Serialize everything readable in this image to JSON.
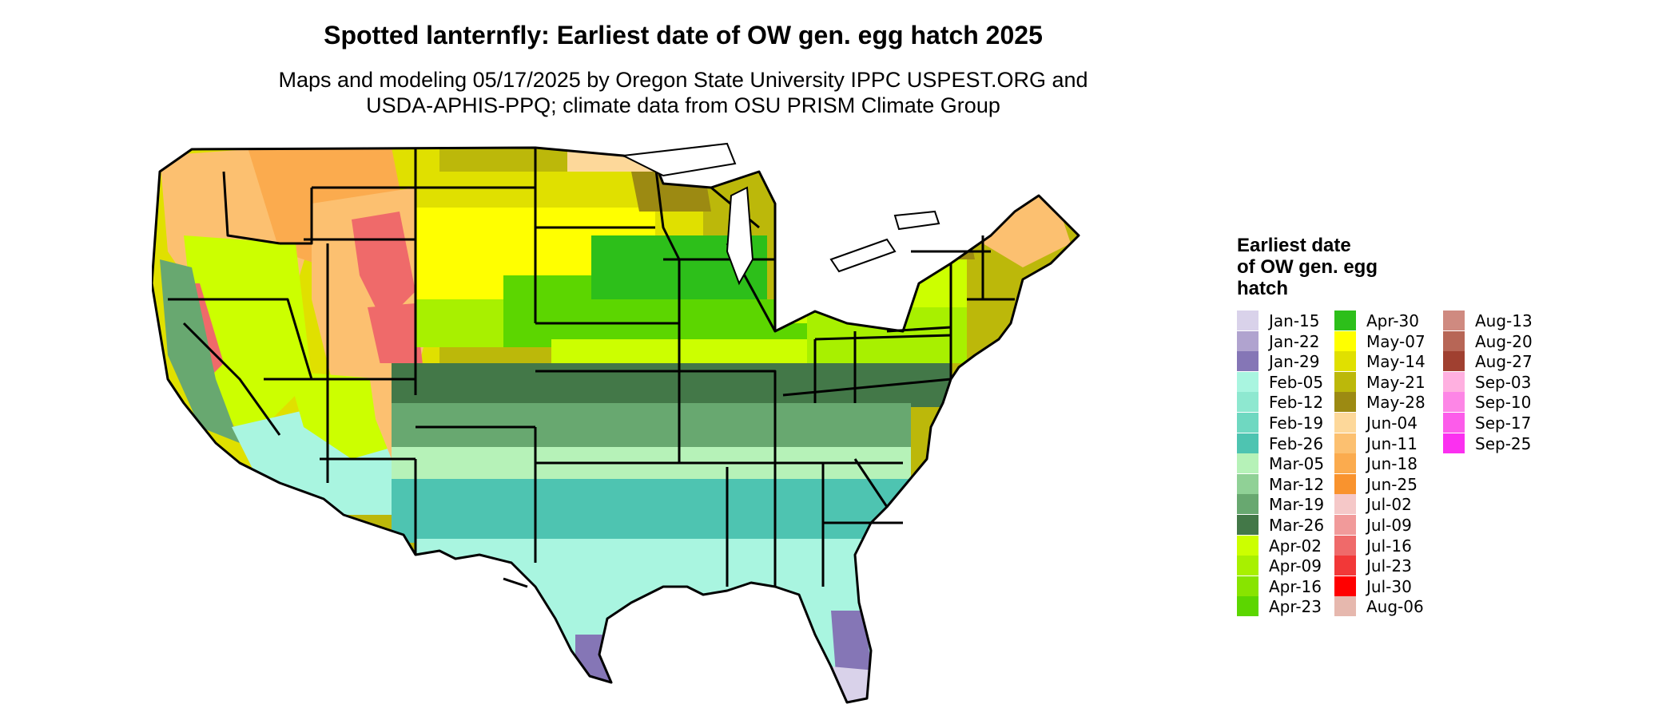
{
  "title": "Spotted lanternfly: Earliest date of OW gen. egg hatch 2025",
  "subtitle_lines": [
    "Maps and modeling 05/17/2025 by Oregon State University IPPC USPEST.ORG and",
    "USDA-APHIS-PPQ; climate data from OSU PRISM Climate Group"
  ],
  "legend": {
    "title_lines": [
      "Earliest date",
      "of OW gen. egg",
      "hatch"
    ],
    "columns": [
      [
        {
          "label": "Jan-15",
          "color": "#d9d2ea"
        },
        {
          "label": "Jan-22",
          "color": "#b0a3cf"
        },
        {
          "label": "Jan-29",
          "color": "#8576b6"
        },
        {
          "label": "Feb-05",
          "color": "#a9f5e0"
        },
        {
          "label": "Feb-12",
          "color": "#8ee8d0"
        },
        {
          "label": "Feb-19",
          "color": "#6fd8c1"
        },
        {
          "label": "Feb-26",
          "color": "#4ec4b1"
        },
        {
          "label": "Mar-05",
          "color": "#b6f2b8"
        },
        {
          "label": "Mar-12",
          "color": "#90d196"
        },
        {
          "label": "Mar-19",
          "color": "#68a870"
        },
        {
          "label": "Mar-26",
          "color": "#437848"
        },
        {
          "label": "Apr-02",
          "color": "#ccff00"
        },
        {
          "label": "Apr-09",
          "color": "#a8f000"
        },
        {
          "label": "Apr-16",
          "color": "#88e400"
        },
        {
          "label": "Apr-23",
          "color": "#5cd600"
        }
      ],
      [
        {
          "label": "Apr-30",
          "color": "#2dbf1a"
        },
        {
          "label": "May-07",
          "color": "#ffff00"
        },
        {
          "label": "May-14",
          "color": "#e0e000"
        },
        {
          "label": "May-21",
          "color": "#bcb80a"
        },
        {
          "label": "May-28",
          "color": "#9c8a12"
        },
        {
          "label": "Jun-04",
          "color": "#fdd89a"
        },
        {
          "label": "Jun-11",
          "color": "#fcc070"
        },
        {
          "label": "Jun-18",
          "color": "#fbab4e"
        },
        {
          "label": "Jun-25",
          "color": "#f9932e"
        },
        {
          "label": "Jul-02",
          "color": "#f5c8c8"
        },
        {
          "label": "Jul-09",
          "color": "#f19a9a"
        },
        {
          "label": "Jul-16",
          "color": "#ef6a6a"
        },
        {
          "label": "Jul-23",
          "color": "#f23838"
        },
        {
          "label": "Jul-30",
          "color": "#ff0000"
        },
        {
          "label": "Aug-06",
          "color": "#e6b8ae"
        }
      ],
      [
        {
          "label": "Aug-13",
          "color": "#cf8a80"
        },
        {
          "label": "Aug-20",
          "color": "#b76656"
        },
        {
          "label": "Aug-27",
          "color": "#a04030"
        },
        {
          "label": "Sep-03",
          "color": "#ffb0e0"
        },
        {
          "label": "Sep-10",
          "color": "#fd86e6"
        },
        {
          "label": "Sep-17",
          "color": "#fc5cea"
        },
        {
          "label": "Sep-25",
          "color": "#fb30f0"
        }
      ]
    ]
  },
  "map": {
    "description_zones": [
      {
        "zone": "south-florida",
        "color": "#8576b6"
      },
      {
        "zone": "south-texas-tip",
        "color": "#8576b6"
      },
      {
        "zone": "gulf-coast",
        "color": "#a9f5e0"
      },
      {
        "zone": "deep-south",
        "color": "#90d196"
      },
      {
        "zone": "upper-south",
        "color": "#437848"
      },
      {
        "zone": "mid-latitude",
        "color": "#5cd600"
      },
      {
        "zone": "central-plains",
        "color": "#ccff00"
      },
      {
        "zone": "northern-plains",
        "color": "#ffff00"
      },
      {
        "zone": "upper-midwest",
        "color": "#bcb80a"
      },
      {
        "zone": "mountains",
        "color": "#fcc070"
      },
      {
        "zone": "mountain-peaks",
        "color": "#ef6a6a"
      }
    ]
  }
}
